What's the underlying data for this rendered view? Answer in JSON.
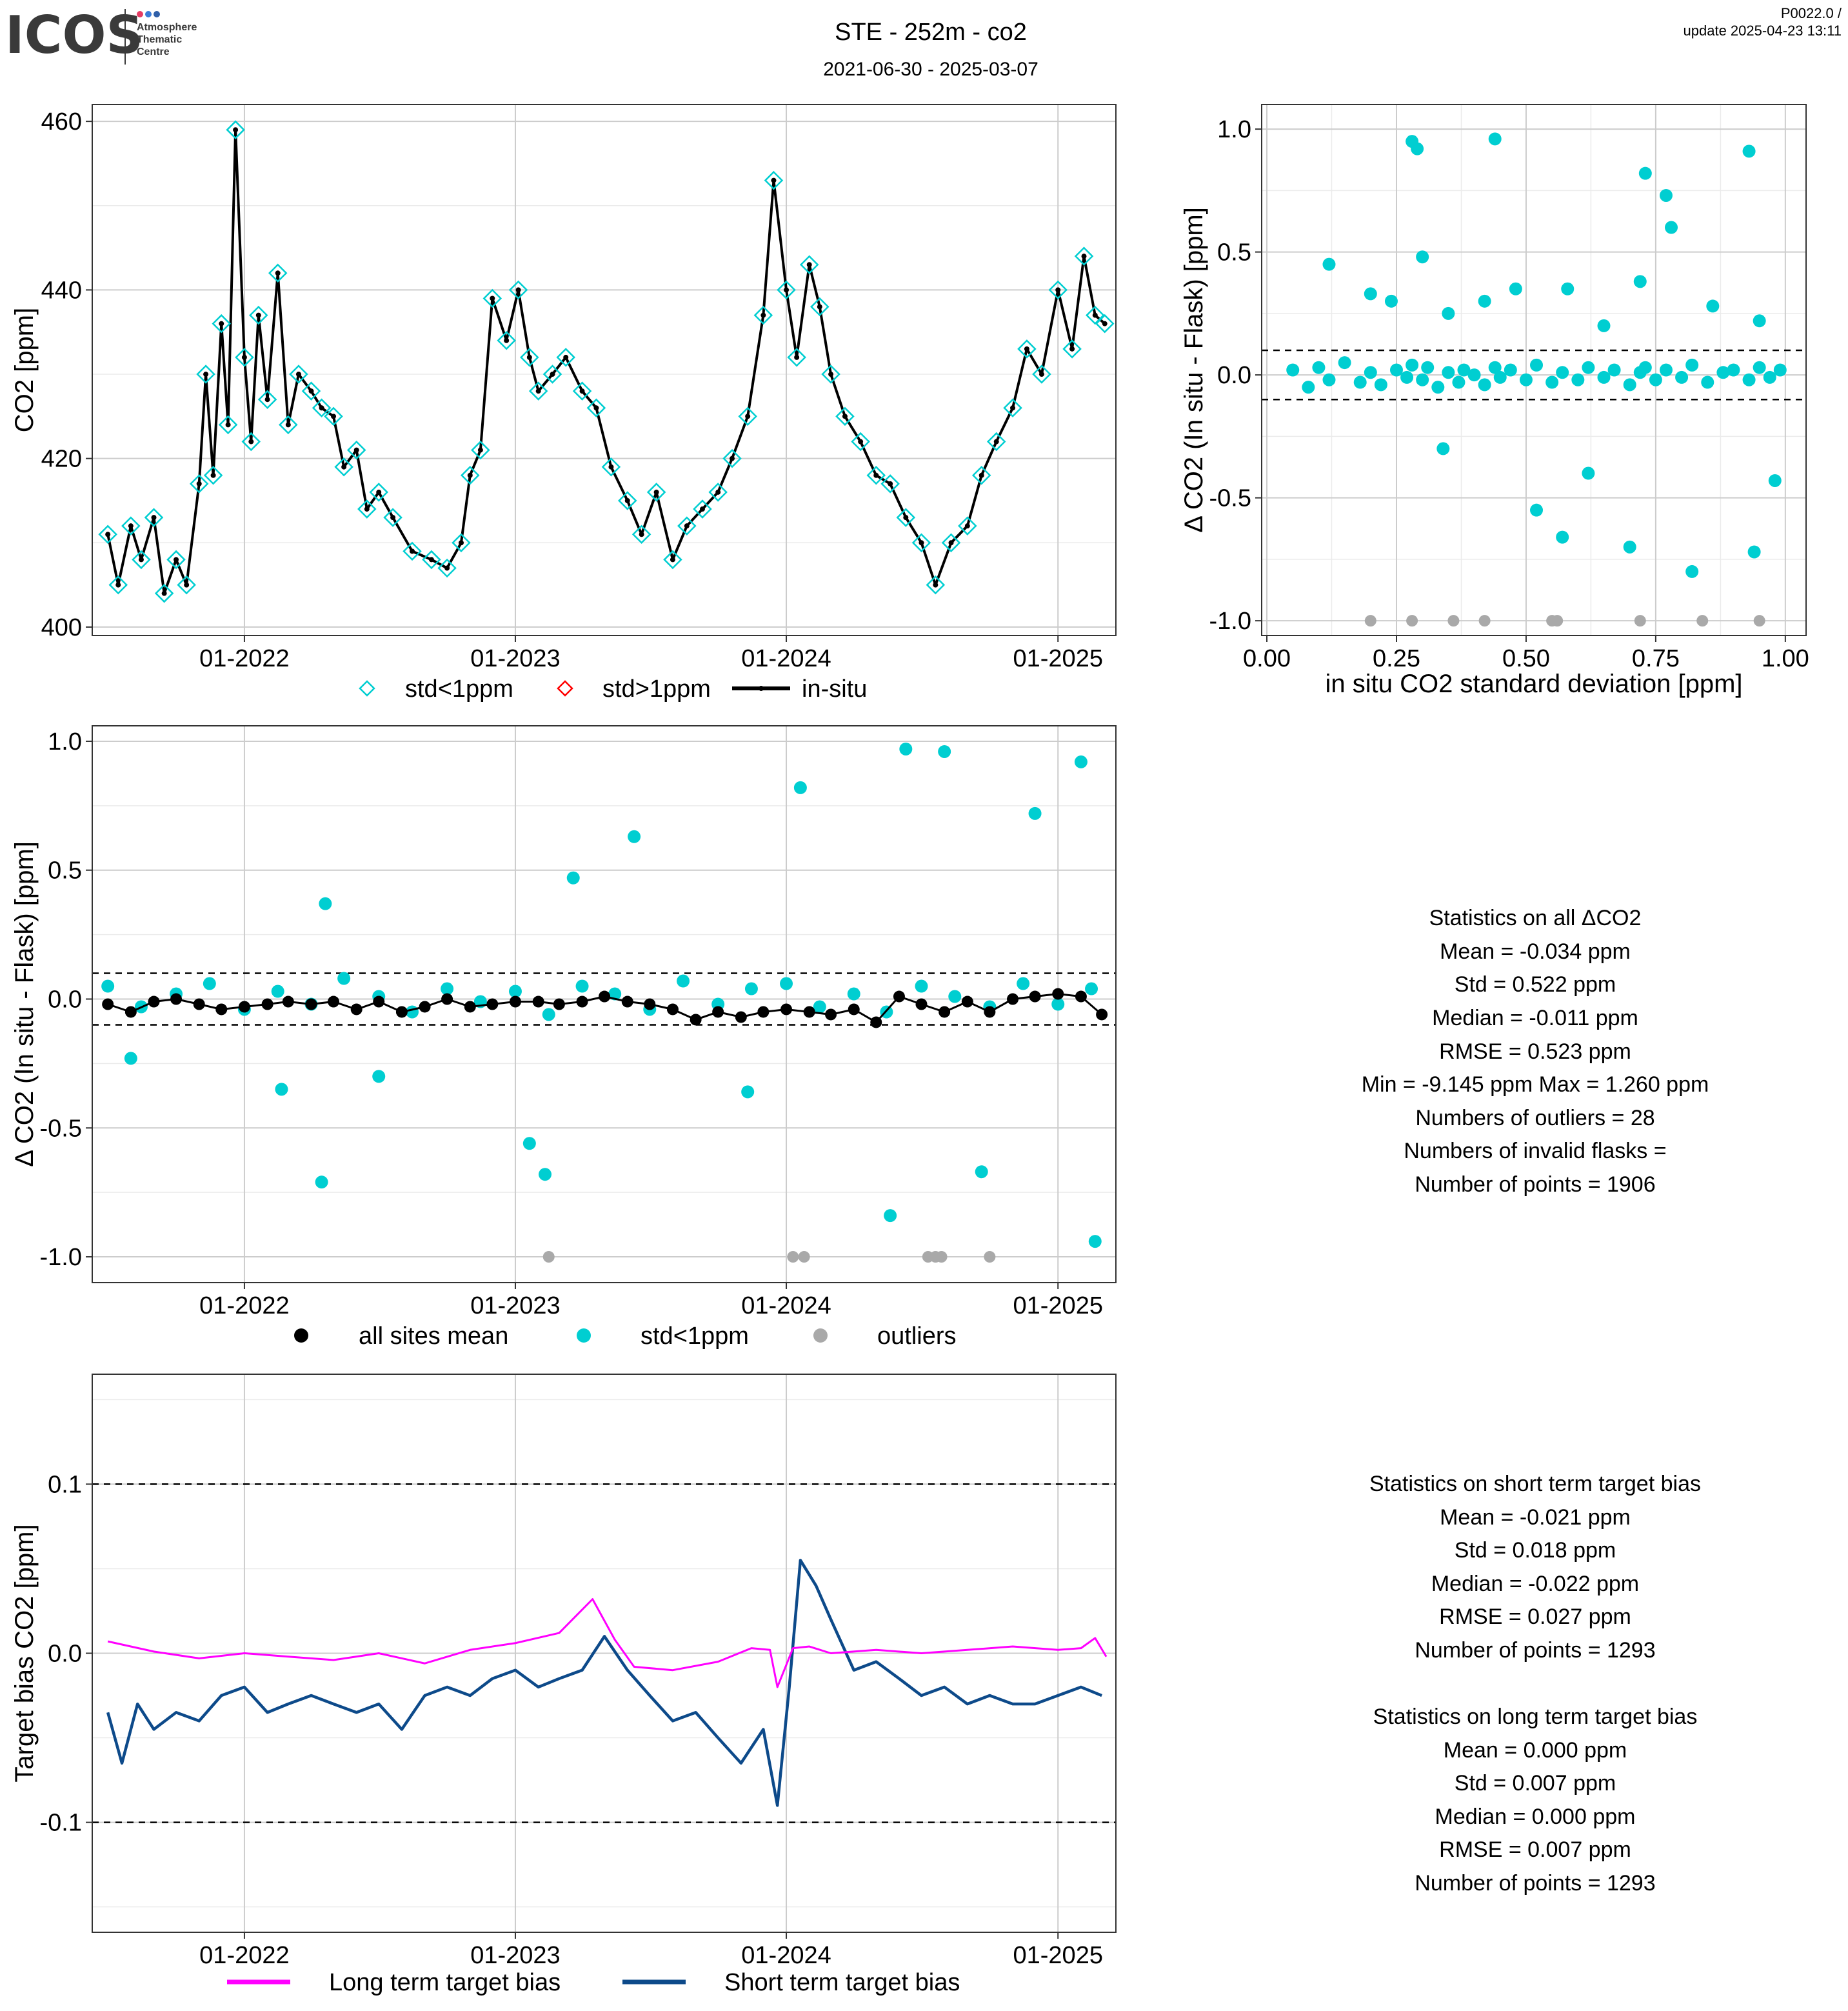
{
  "header": {
    "logo": "ICOS",
    "logo_sub": [
      "Atmosphere",
      "Thematic",
      "Centre"
    ],
    "title": "STE - 252m - co2",
    "date_range": "2021-06-30 - 2025-03-07",
    "version": "P0022.0 /",
    "update": "update  2025-04-23 13:11"
  },
  "colors": {
    "std_lt_1ppm": "#00CED1",
    "std_gt_1ppm": "#FF0000",
    "insitu": "#000000",
    "outliers": "#A9A9A9",
    "all_sites_mean": "#000000",
    "long_term_bias": "#FF00FF",
    "short_term_bias": "#0D4A8A",
    "grid_major": "#CCCCCC",
    "grid_minor": "#EBEBEB"
  },
  "legends": {
    "panel1": [
      "std<1ppm",
      "std>1ppm",
      "in-situ"
    ],
    "panel3": [
      "all sites mean",
      "std<1ppm",
      "outliers"
    ],
    "panel4": [
      "Long term target bias",
      "Short term target bias"
    ]
  },
  "stats_all": {
    "lines": [
      "Statistics on all ΔCO2",
      "Mean =  -0.034 ppm",
      "Std =  0.522 ppm",
      "Median =  -0.011 ppm",
      "RMSE =  0.523 ppm",
      "Min =  -9.145 ppm Max =  1.260 ppm",
      "Numbers of outliers =  28",
      "Numbers of invalid flasks = ",
      "Number of points =  1906"
    ]
  },
  "stats_bias": {
    "lines": [
      "Statistics on short term target bias",
      "Mean =  -0.021 ppm",
      "Std =  0.018 ppm",
      "Median =  -0.022 ppm",
      "RMSE =  0.027 ppm",
      "Number of points =  1293",
      "",
      "Statistics on long term target bias",
      "Mean =  0.000 ppm",
      "Std =  0.007 ppm",
      "Median =  0.000 ppm",
      "RMSE =  0.007 ppm",
      "Number of points =  1293"
    ]
  },
  "chart_data": [
    {
      "id": "timeseries",
      "type": "line",
      "ylabel": "CO2 [ppm]",
      "xlabel": "",
      "x_ticks": [
        "01-2022",
        "01-2023",
        "01-2024",
        "01-2025"
      ],
      "y_ticks": [
        400,
        420,
        440,
        460
      ],
      "xlim": [
        "2021-06-10",
        "2025-03-20"
      ],
      "ylim": [
        399,
        462
      ],
      "legend_position": "bottom",
      "grid": true,
      "series": [
        {
          "name": "in-situ",
          "x": [
            "2021-07-01",
            "2021-07-15",
            "2021-08-01",
            "2021-08-15",
            "2021-09-01",
            "2021-09-15",
            "2021-10-01",
            "2021-10-15",
            "2021-11-01",
            "2021-11-10",
            "2021-11-20",
            "2021-12-01",
            "2021-12-10",
            "2021-12-20",
            "2022-01-01",
            "2022-01-10",
            "2022-01-20",
            "2022-02-01",
            "2022-02-15",
            "2022-03-01",
            "2022-03-15",
            "2022-04-01",
            "2022-04-15",
            "2022-05-01",
            "2022-05-15",
            "2022-06-01",
            "2022-06-15",
            "2022-07-01",
            "2022-07-20",
            "2022-08-15",
            "2022-09-10",
            "2022-10-01",
            "2022-10-20",
            "2022-11-01",
            "2022-11-15",
            "2022-12-01",
            "2022-12-20",
            "2023-01-05",
            "2023-01-20",
            "2023-02-01",
            "2023-02-20",
            "2023-03-10",
            "2023-04-01",
            "2023-04-20",
            "2023-05-10",
            "2023-06-01",
            "2023-06-20",
            "2023-07-10",
            "2023-08-01",
            "2023-08-20",
            "2023-09-10",
            "2023-10-01",
            "2023-10-20",
            "2023-11-10",
            "2023-12-01",
            "2023-12-15",
            "2024-01-01",
            "2024-01-15",
            "2024-02-01",
            "2024-02-15",
            "2024-03-01",
            "2024-03-20",
            "2024-04-10",
            "2024-05-01",
            "2024-05-20",
            "2024-06-10",
            "2024-07-01",
            "2024-07-20",
            "2024-08-10",
            "2024-09-01",
            "2024-09-20",
            "2024-10-10",
            "2024-11-01",
            "2024-11-20",
            "2024-12-10",
            "2025-01-01",
            "2025-01-20",
            "2025-02-05",
            "2025-02-20",
            "2025-03-05"
          ],
          "values": [
            411,
            405,
            412,
            408,
            413,
            404,
            408,
            405,
            417,
            430,
            418,
            436,
            424,
            459,
            432,
            422,
            437,
            427,
            442,
            424,
            430,
            428,
            426,
            425,
            419,
            421,
            414,
            416,
            413,
            409,
            408,
            407,
            410,
            418,
            421,
            439,
            434,
            440,
            432,
            428,
            430,
            432,
            428,
            426,
            419,
            415,
            411,
            416,
            408,
            412,
            414,
            416,
            420,
            425,
            437,
            453,
            440,
            432,
            443,
            438,
            430,
            425,
            422,
            418,
            417,
            413,
            410,
            405,
            410,
            412,
            418,
            422,
            426,
            433,
            430,
            440,
            433,
            444,
            437,
            436
          ]
        },
        {
          "name": "std<1ppm",
          "marker": "diamond-open",
          "values_note": "same points as in-situ"
        },
        {
          "name": "std>1ppm",
          "marker": "diamond-open",
          "x": [],
          "values": []
        }
      ]
    },
    {
      "id": "delta_vs_std",
      "type": "scatter",
      "xlabel": "in situ CO2 standard deviation [ppm]",
      "ylabel": "Δ CO2 (In situ - Flask) [ppm]",
      "x_ticks": [
        "0.00",
        "0.25",
        "0.50",
        "0.75",
        "1.00"
      ],
      "y_ticks": [
        "-1.0",
        "-0.5",
        "0.0",
        "0.5",
        "1.0"
      ],
      "xlim": [
        -0.01,
        1.04
      ],
      "ylim": [
        -1.06,
        1.1
      ],
      "reference_lines": [
        -0.1,
        0.1
      ],
      "grid": true,
      "series": [
        {
          "name": "std<1ppm",
          "x": [
            0.05,
            0.08,
            0.1,
            0.12,
            0.15,
            0.18,
            0.2,
            0.22,
            0.25,
            0.27,
            0.28,
            0.3,
            0.31,
            0.33,
            0.35,
            0.37,
            0.38,
            0.4,
            0.42,
            0.44,
            0.45,
            0.47,
            0.5,
            0.52,
            0.55,
            0.57,
            0.6,
            0.62,
            0.65,
            0.67,
            0.7,
            0.72,
            0.73,
            0.75,
            0.77,
            0.8,
            0.82,
            0.85,
            0.88,
            0.9,
            0.93,
            0.95,
            0.97,
            0.99,
            0.12,
            0.2,
            0.24,
            0.3,
            0.35,
            0.42,
            0.48,
            0.58,
            0.65,
            0.72,
            0.78,
            0.86,
            0.95,
            0.28,
            0.29,
            0.44,
            0.73,
            0.77,
            0.93,
            0.57,
            0.7,
            0.82,
            0.94,
            0.34,
            0.52,
            0.62,
            0.98
          ],
          "y": [
            0.02,
            -0.05,
            0.03,
            -0.02,
            0.05,
            -0.03,
            0.01,
            -0.04,
            0.02,
            -0.01,
            0.04,
            -0.02,
            0.03,
            -0.05,
            0.01,
            -0.03,
            0.02,
            0.0,
            -0.04,
            0.03,
            -0.01,
            0.02,
            -0.02,
            0.04,
            -0.03,
            0.01,
            -0.02,
            0.03,
            -0.01,
            0.02,
            -0.04,
            0.01,
            0.03,
            -0.02,
            0.02,
            -0.01,
            0.04,
            -0.03,
            0.01,
            0.02,
            -0.02,
            0.03,
            -0.01,
            0.02,
            0.45,
            0.33,
            0.3,
            0.48,
            0.25,
            0.3,
            0.35,
            0.35,
            0.2,
            0.38,
            0.6,
            0.28,
            0.22,
            0.95,
            0.92,
            0.96,
            0.82,
            0.73,
            0.91,
            -0.66,
            -0.7,
            -0.8,
            -0.72,
            -0.3,
            -0.55,
            -0.4,
            -0.43
          ]
        },
        {
          "name": "outliers",
          "x": [
            0.2,
            0.28,
            0.36,
            0.42,
            0.55,
            0.56,
            0.72,
            0.84,
            0.95
          ],
          "y": [
            -1.0,
            -1.0,
            -1.0,
            -1.0,
            -1.0,
            -1.0,
            -1.0,
            -1.0,
            -1.0
          ]
        }
      ]
    },
    {
      "id": "delta_timeseries",
      "type": "scatter",
      "ylabel": "Δ CO2 (In situ - Flask) [ppm]",
      "xlabel": "",
      "x_ticks": [
        "01-2022",
        "01-2023",
        "01-2024",
        "01-2025"
      ],
      "y_ticks": [
        "-1.0",
        "-0.5",
        "0.0",
        "0.5",
        "1.0"
      ],
      "xlim": [
        "2021-06-10",
        "2025-03-20"
      ],
      "ylim": [
        -1.1,
        1.06
      ],
      "reference_lines": [
        -0.1,
        0.1
      ],
      "legend_position": "bottom",
      "grid": true,
      "series": [
        {
          "name": "all sites mean",
          "x": [
            "2021-07-01",
            "2021-08-01",
            "2021-09-01",
            "2021-10-01",
            "2021-11-01",
            "2021-12-01",
            "2022-01-01",
            "2022-02-01",
            "2022-03-01",
            "2022-04-01",
            "2022-05-01",
            "2022-06-01",
            "2022-07-01",
            "2022-08-01",
            "2022-09-01",
            "2022-10-01",
            "2022-11-01",
            "2022-12-01",
            "2023-01-01",
            "2023-02-01",
            "2023-03-01",
            "2023-04-01",
            "2023-05-01",
            "2023-06-01",
            "2023-07-01",
            "2023-08-01",
            "2023-09-01",
            "2023-10-01",
            "2023-11-01",
            "2023-12-01",
            "2024-01-01",
            "2024-02-01",
            "2024-03-01",
            "2024-04-01",
            "2024-05-01",
            "2024-06-01",
            "2024-07-01",
            "2024-08-01",
            "2024-09-01",
            "2024-10-01",
            "2024-11-01",
            "2024-12-01",
            "2025-01-01",
            "2025-02-01",
            "2025-03-01"
          ],
          "values": [
            -0.02,
            -0.05,
            -0.01,
            0.0,
            -0.02,
            -0.04,
            -0.03,
            -0.02,
            -0.01,
            -0.02,
            -0.01,
            -0.04,
            -0.01,
            -0.05,
            -0.03,
            0.0,
            -0.03,
            -0.02,
            -0.01,
            -0.01,
            -0.02,
            -0.01,
            0.01,
            -0.01,
            -0.02,
            -0.04,
            -0.08,
            -0.05,
            -0.07,
            -0.05,
            -0.04,
            -0.05,
            -0.06,
            -0.04,
            -0.09,
            0.01,
            -0.02,
            -0.05,
            -0.01,
            -0.05,
            0.0,
            0.01,
            0.02,
            0.01,
            -0.06
          ]
        },
        {
          "name": "std<1ppm",
          "x": [
            "2021-07-01",
            "2021-08-15",
            "2021-10-01",
            "2021-11-15",
            "2022-01-01",
            "2022-02-15",
            "2022-04-01",
            "2022-05-15",
            "2022-07-01",
            "2022-08-15",
            "2022-10-01",
            "2022-11-15",
            "2023-01-01",
            "2023-02-15",
            "2023-04-01",
            "2023-05-15",
            "2023-07-01",
            "2023-08-15",
            "2023-10-01",
            "2023-11-15",
            "2024-01-01",
            "2024-02-15",
            "2024-04-01",
            "2024-05-15",
            "2024-07-01",
            "2024-08-15",
            "2024-10-01",
            "2024-11-15",
            "2025-01-01",
            "2025-02-15",
            "2022-04-20",
            "2023-03-20",
            "2023-06-10",
            "2024-01-20",
            "2024-06-10",
            "2024-08-01",
            "2024-12-01",
            "2025-02-01",
            "2022-04-15",
            "2023-01-20",
            "2023-02-10",
            "2024-05-20",
            "2024-09-20",
            "2025-02-20",
            "2022-02-20",
            "2021-08-01",
            "2023-11-10",
            "2022-07-01"
          ],
          "values": [
            0.05,
            -0.03,
            0.02,
            0.06,
            -0.04,
            0.03,
            -0.02,
            0.08,
            0.01,
            -0.05,
            0.04,
            -0.01,
            0.03,
            -0.06,
            0.05,
            0.02,
            -0.04,
            0.07,
            -0.02,
            0.04,
            0.06,
            -0.03,
            0.02,
            -0.05,
            0.05,
            0.01,
            -0.03,
            0.06,
            -0.02,
            0.04,
            0.37,
            0.47,
            0.63,
            0.82,
            0.97,
            0.96,
            0.72,
            0.92,
            -0.71,
            -0.56,
            -0.68,
            -0.84,
            -0.67,
            -0.94,
            -0.35,
            -0.23,
            -0.36,
            -0.3
          ]
        },
        {
          "name": "outliers",
          "x": [
            "2023-02-15",
            "2024-01-10",
            "2024-01-25",
            "2024-07-10",
            "2024-07-20",
            "2024-07-28",
            "2024-10-01"
          ],
          "values": [
            -1.0,
            -1.0,
            -1.0,
            -1.0,
            -1.0,
            -1.0,
            -1.0
          ]
        }
      ]
    },
    {
      "id": "target_bias",
      "type": "line",
      "ylabel": "Target bias CO2 [ppm]",
      "xlabel": "",
      "x_ticks": [
        "01-2022",
        "01-2023",
        "01-2024",
        "01-2025"
      ],
      "y_ticks": [
        "-0.1",
        "0.0",
        "0.1"
      ],
      "xlim": [
        "2021-06-10",
        "2025-03-20"
      ],
      "ylim": [
        -0.165,
        0.165
      ],
      "reference_lines": [
        -0.1,
        0.1
      ],
      "legend_position": "bottom",
      "grid": true,
      "series": [
        {
          "name": "Long term target bias",
          "x": [
            "2021-07-01",
            "2021-09-01",
            "2021-11-01",
            "2022-01-01",
            "2022-03-01",
            "2022-05-01",
            "2022-07-01",
            "2022-09-01",
            "2022-11-01",
            "2023-01-01",
            "2023-03-01",
            "2023-04-15",
            "2023-05-15",
            "2023-06-10",
            "2023-08-01",
            "2023-10-01",
            "2023-11-15",
            "2023-12-10",
            "2023-12-20",
            "2024-01-10",
            "2024-02-01",
            "2024-03-01",
            "2024-05-01",
            "2024-07-01",
            "2024-09-01",
            "2024-11-01",
            "2025-01-01",
            "2025-02-01",
            "2025-02-20",
            "2025-03-07"
          ],
          "values": [
            0.007,
            0.001,
            -0.003,
            0.0,
            -0.002,
            -0.004,
            0.0,
            -0.006,
            0.002,
            0.006,
            0.012,
            0.032,
            0.008,
            -0.008,
            -0.01,
            -0.005,
            0.003,
            0.002,
            -0.02,
            0.003,
            0.004,
            0.0,
            0.002,
            0.0,
            0.002,
            0.004,
            0.002,
            0.003,
            0.009,
            -0.002
          ]
        },
        {
          "name": "Short term target bias",
          "x": [
            "2021-07-01",
            "2021-07-20",
            "2021-08-10",
            "2021-09-01",
            "2021-10-01",
            "2021-11-01",
            "2021-12-01",
            "2022-01-01",
            "2022-02-01",
            "2022-03-01",
            "2022-04-01",
            "2022-05-01",
            "2022-06-01",
            "2022-07-01",
            "2022-08-01",
            "2022-09-01",
            "2022-10-01",
            "2022-11-01",
            "2022-12-01",
            "2023-01-01",
            "2023-02-01",
            "2023-03-01",
            "2023-04-01",
            "2023-05-01",
            "2023-06-01",
            "2023-07-01",
            "2023-08-01",
            "2023-09-01",
            "2023-10-01",
            "2023-11-01",
            "2023-12-01",
            "2023-12-20",
            "2024-01-05",
            "2024-01-20",
            "2024-02-10",
            "2024-03-01",
            "2024-04-01",
            "2024-05-01",
            "2024-06-01",
            "2024-07-01",
            "2024-08-01",
            "2024-09-01",
            "2024-10-01",
            "2024-11-01",
            "2024-12-01",
            "2025-01-01",
            "2025-02-01",
            "2025-03-01"
          ],
          "values": [
            -0.035,
            -0.065,
            -0.03,
            -0.045,
            -0.035,
            -0.04,
            -0.025,
            -0.02,
            -0.035,
            -0.03,
            -0.025,
            -0.03,
            -0.035,
            -0.03,
            -0.045,
            -0.025,
            -0.02,
            -0.025,
            -0.015,
            -0.01,
            -0.02,
            -0.015,
            -0.01,
            0.01,
            -0.01,
            -0.025,
            -0.04,
            -0.035,
            -0.05,
            -0.065,
            -0.045,
            -0.09,
            -0.02,
            0.055,
            0.04,
            0.02,
            -0.01,
            -0.005,
            -0.015,
            -0.025,
            -0.02,
            -0.03,
            -0.025,
            -0.03,
            -0.03,
            -0.025,
            -0.02,
            -0.025
          ]
        }
      ]
    }
  ]
}
